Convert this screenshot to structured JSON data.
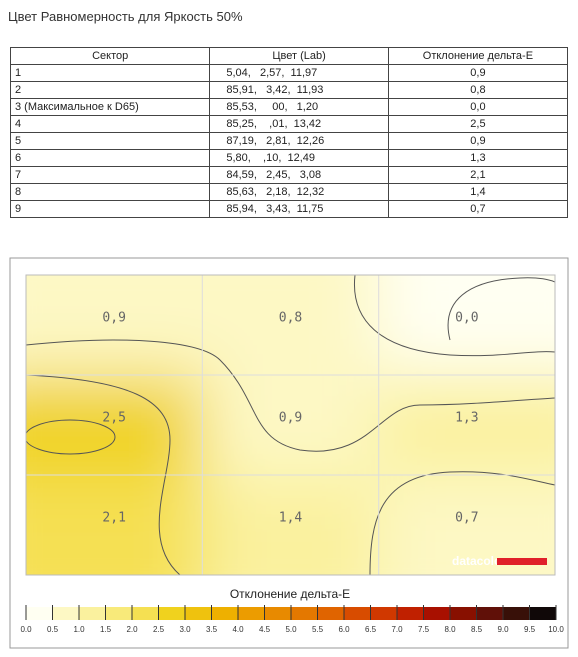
{
  "title": "Цвет Равномерность для Яркость 50%",
  "table": {
    "header": [
      "Сектор",
      "Цвет (Lab)",
      "Отклонение дельта-E"
    ],
    "rows": [
      [
        "1",
        "5,04,   2,57,  11,97",
        "0,9"
      ],
      [
        "2",
        "85,91,   3,42,  11,93",
        "0,8"
      ],
      [
        "3 (Максимальное к D65)",
        "85,53,     00,   1,20",
        "0,0"
      ],
      [
        "4",
        "85,25,    ,01,  13,42",
        "2,5"
      ],
      [
        "5",
        "87,19,   2,81,  12,26",
        "0,9"
      ],
      [
        "6",
        "5,80,    ,10,  12,49",
        "1,3"
      ],
      [
        "7",
        "84,59,   2,45,   3,08",
        "2,1"
      ],
      [
        "8",
        "85,63,   2,18,  12,32",
        "1,4"
      ],
      [
        "9",
        "85,94,   3,43,  11,75",
        "0,7"
      ]
    ]
  },
  "chart_data": {
    "type": "heatmap",
    "values": [
      [
        0.9,
        0.8,
        0
      ],
      [
        2.5,
        0.9,
        1.3
      ],
      [
        2.1,
        1.4,
        0.7
      ]
    ],
    "value_labels": [
      [
        "0,9",
        "0,8",
        "0,0"
      ],
      [
        "2,5",
        "0,9",
        "1,3"
      ],
      [
        "2,1",
        "1,4",
        "0,7"
      ]
    ],
    "colorbar_title": "Отклонение дельта-E",
    "colorbar_lim": [
      0,
      10
    ],
    "colorbar_ticks": [
      {
        "value": 0,
        "label": "0.0"
      },
      0.5,
      {
        "value": 1,
        "label": "1.0"
      },
      1.5,
      {
        "value": 2,
        "label": "2.0"
      },
      2.5,
      {
        "value": 3,
        "label": "3.0"
      },
      3.5,
      {
        "value": 4,
        "label": "4.0"
      },
      4.5,
      {
        "value": 5,
        "label": "5.0"
      },
      5.5,
      {
        "value": 6,
        "label": "6.0"
      },
      6.5,
      {
        "value": 7,
        "label": "7.0"
      },
      7.5,
      {
        "value": 8,
        "label": "8.0"
      },
      8.5,
      {
        "value": 9,
        "label": "9.0"
      },
      9.5,
      {
        "value": 10,
        "label": "10.0"
      }
    ],
    "colorscale": [
      "#fffff2",
      "#fdf8c4",
      "#faf19e",
      "#f8ea7a",
      "#f5e052",
      "#f0d21e",
      "#efc20e",
      "#eeb000",
      "#ec9c00",
      "#e88a00",
      "#e47800",
      "#e06400",
      "#d84c00",
      "#d03800",
      "#c02000",
      "#a81000",
      "#881000",
      "#601008",
      "#381008",
      "#100808"
    ],
    "watermark": "datacolor"
  }
}
